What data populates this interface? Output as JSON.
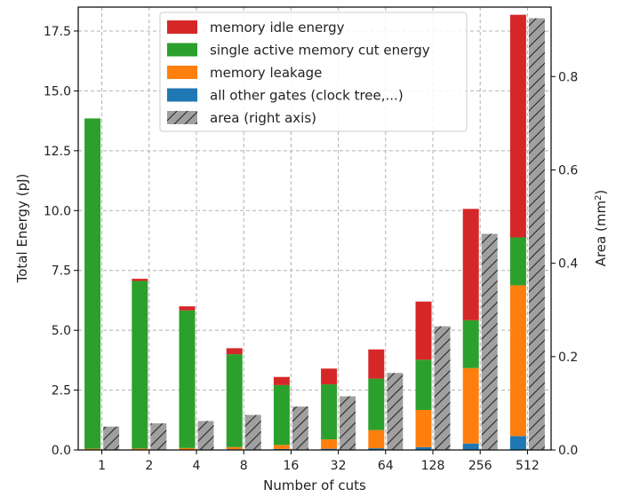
{
  "chart_data": {
    "type": "bar",
    "stacked": true,
    "xlabel": "Number of cuts",
    "ylabel_left": "Total Energy (pJ)",
    "ylabel_right_prefix": "Area (mm",
    "ylabel_right_sup": "2",
    "ylabel_right_suffix": ")",
    "categories": [
      "1",
      "2",
      "4",
      "8",
      "16",
      "32",
      "64",
      "128",
      "256",
      "512"
    ],
    "ylim_left": [
      0,
      18.5
    ],
    "ylim_right": [
      0,
      0.9488
    ],
    "yticks_left": [
      "0.0",
      "2.5",
      "5.0",
      "7.5",
      "10.0",
      "12.5",
      "15.0",
      "17.5"
    ],
    "ytick_values_left": [
      0,
      2.5,
      5.0,
      7.5,
      10.0,
      12.5,
      15.0,
      17.5
    ],
    "yticks_right": [
      "0.0",
      "0.2",
      "0.4",
      "0.6",
      "0.8"
    ],
    "ytick_values_right": [
      0,
      0.2,
      0.4,
      0.6,
      0.8
    ],
    "grid": true,
    "legend_position": "top-center",
    "series": [
      {
        "name": "all other gates (clock tree,...)",
        "color": "#1f77b4",
        "axis": "left",
        "values": [
          0.02,
          0.02,
          0.02,
          0.03,
          0.04,
          0.05,
          0.07,
          0.12,
          0.27,
          0.58
        ]
      },
      {
        "name": "memory leakage",
        "color": "#ff7f0e",
        "axis": "left",
        "values": [
          0.03,
          0.04,
          0.06,
          0.09,
          0.17,
          0.39,
          0.76,
          1.55,
          3.15,
          6.3
        ]
      },
      {
        "name": "single active memory cut energy",
        "color": "#2ca02c",
        "axis": "left",
        "values": [
          13.8,
          7.0,
          5.75,
          3.88,
          2.5,
          2.3,
          2.15,
          2.1,
          2.0,
          2.0
        ]
      },
      {
        "name": "memory idle energy",
        "color": "#d62728",
        "axis": "left",
        "values": [
          0.0,
          0.09,
          0.17,
          0.25,
          0.34,
          0.66,
          1.22,
          2.43,
          4.65,
          9.3
        ]
      },
      {
        "name": "area (right axis)",
        "color": "#a0a0a0",
        "axis": "right",
        "hatch": true,
        "values": [
          0.05,
          0.057,
          0.062,
          0.075,
          0.093,
          0.115,
          0.165,
          0.265,
          0.463,
          0.925
        ]
      }
    ],
    "legend_order": [
      "memory idle energy",
      "single active memory cut energy",
      "memory leakage",
      "all other gates (clock tree,...)",
      "area (right axis)"
    ]
  }
}
